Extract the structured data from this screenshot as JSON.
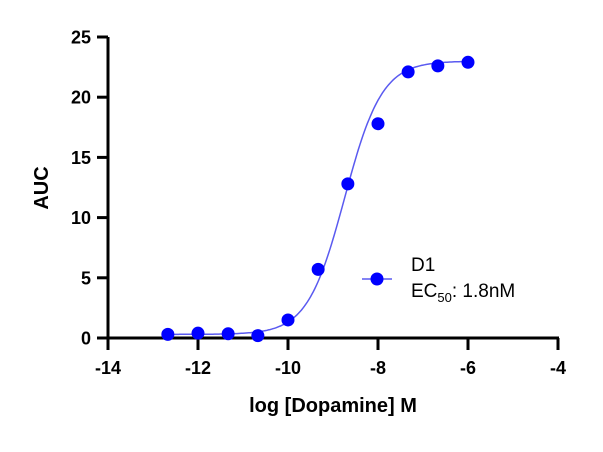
{
  "chart_data": {
    "type": "scatter",
    "title": "",
    "xlabel": "log [Dopamine] M",
    "ylabel": "AUC",
    "xlim": [
      -14,
      -4
    ],
    "ylim": [
      0,
      25
    ],
    "x_ticks": [
      -14,
      -12,
      -10,
      -8,
      -6,
      -4
    ],
    "y_ticks": [
      0,
      5,
      10,
      15,
      20,
      25
    ],
    "x_tick_labels": [
      "-14",
      "-12",
      "-10",
      "-8",
      "-6",
      "-4"
    ],
    "y_tick_labels": [
      "0",
      "5",
      "10",
      "15",
      "20",
      "25"
    ],
    "grid": false,
    "legend_position": "inside-right",
    "series": [
      {
        "name": "D1",
        "color": "#0000ff",
        "fit_color": "#5a5af0",
        "fit": "sigmoidal dose-response",
        "ec50_label": "EC50: 1.8nM",
        "x": [
          -12.67,
          -12.0,
          -11.33,
          -10.67,
          -10.0,
          -9.33,
          -8.67,
          -8.0,
          -7.33,
          -6.67,
          -6.0
        ],
        "values": [
          0.3,
          0.4,
          0.35,
          0.2,
          1.5,
          5.7,
          12.8,
          17.8,
          22.1,
          22.6,
          22.9
        ]
      }
    ],
    "fit_params": {
      "bottom": 0.3,
      "top": 23.0,
      "log_ec50": -8.74,
      "hill": 1.05
    }
  },
  "legend": {
    "series_name": "D1",
    "ec50_prefix": "EC",
    "ec50_subscript": "50",
    "ec50_value": ": 1.8nM"
  }
}
